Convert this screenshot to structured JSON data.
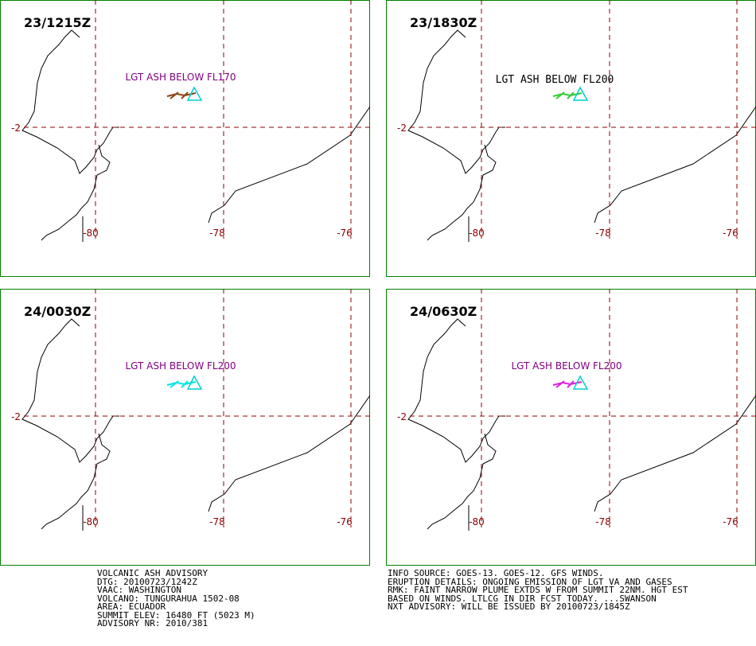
{
  "panels": [
    {
      "time": "23/1215Z",
      "label": "LGT ASH BELOW FL170",
      "label_color": "#800080",
      "plume_color": "#8b4513"
    },
    {
      "time": "23/1830Z",
      "label": "LGT ASH BELOW FL200",
      "label_color": "#000000",
      "plume_color": "#33cc33"
    },
    {
      "time": "24/0030Z",
      "label": "LGT ASH BELOW FL200",
      "label_color": "#800080",
      "plume_color": "#00e5e5"
    },
    {
      "time": "24/0630Z",
      "label": "LGT ASH BELOW FL200",
      "label_color": "#800080",
      "plume_color": "#e020e0"
    }
  ],
  "lat_label": "-2",
  "lon_labels": [
    "-80",
    "-78",
    "-76"
  ],
  "footer_left": [
    "VOLCANIC ASH ADVISORY",
    "DTG: 20100723/1242Z",
    "VAAC: WASHINGTON",
    "VOLCANO: TUNGURAHUA 1502-08",
    "AREA: ECUADOR",
    "SUMMIT ELEV: 16480 FT (5023 M)",
    "ADVISORY NR: 2010/381"
  ],
  "footer_right": [
    "INFO SOURCE: GOES-13. GOES-12. GFS WINDS.",
    "ERUPTION DETAILS: ONGOING EMISSION OF LGT VA AND GASES",
    "RMK: FAINT NARROW PLUME EXTDS W FROM SUMMIT 22NM. HGT EST",
    "BASED ON WINDS. LTLCG IN DIR FCST TODAY. ...SWANSON",
    "NXT ADVISORY: WILL BE ISSUED BY 20100723/1845Z"
  ]
}
